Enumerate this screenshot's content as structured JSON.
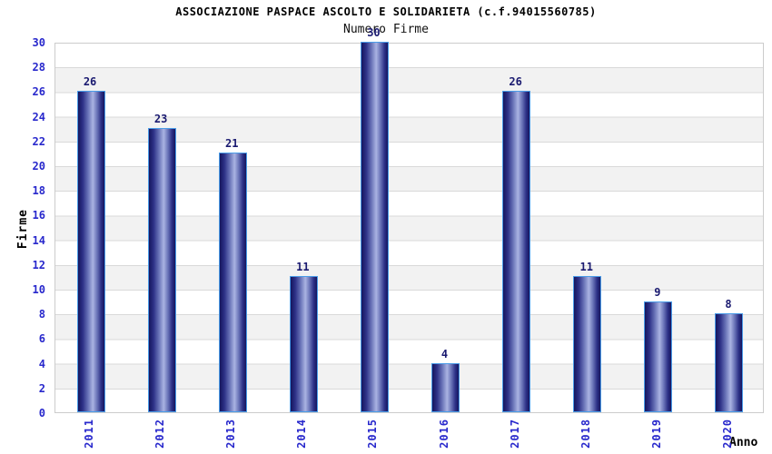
{
  "chart_data": {
    "type": "bar",
    "title": "ASSOCIAZIONE PASPACE ASCOLTO E SOLIDARIETA (c.f.94015560785)",
    "subtitle": "Numero Firme",
    "xlabel": "Anno",
    "ylabel": "Firme",
    "categories": [
      "2011",
      "2012",
      "2013",
      "2014",
      "2015",
      "2016",
      "2017",
      "2018",
      "2019",
      "2020"
    ],
    "values": [
      26,
      23,
      21,
      11,
      30,
      4,
      26,
      11,
      9,
      8
    ],
    "ylim": [
      0,
      30
    ],
    "ytick_step": 2,
    "grid": true,
    "legend_position": "none",
    "colors": {
      "tick_label": "#2828cc",
      "value_label": "#1a1a70",
      "bar_edge_dark": "#15155e",
      "bar_mid": "#2e3288",
      "bar_inner": "#6a74b8",
      "bar_highlight": "#aab3e2",
      "bar_border": "#4a9ce8",
      "band_white": "#ffffff",
      "band_gray": "#f2f2f2",
      "gridline": "#d9d9d9",
      "plot_border": "#cccccc",
      "title_color": "#000000"
    }
  }
}
